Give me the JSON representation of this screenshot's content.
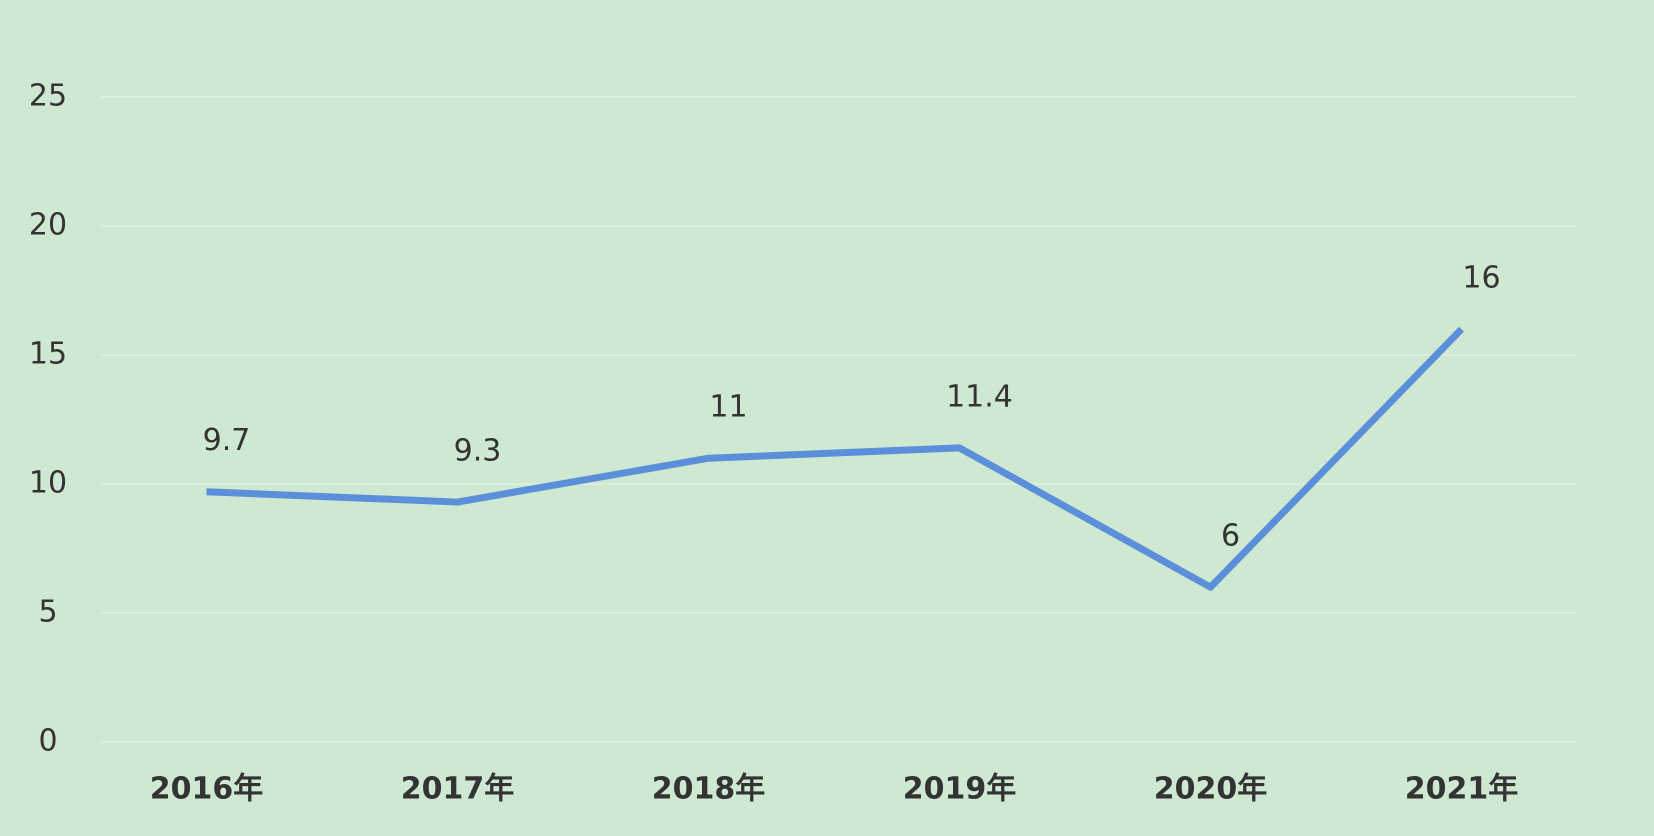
{
  "chart_data": {
    "type": "line",
    "categories": [
      "2016年",
      "2017年",
      "2018年",
      "2019年",
      "2020年",
      "2021年"
    ],
    "values": [
      9.7,
      9.3,
      11,
      11.4,
      6,
      16
    ],
    "color": "#5b8fd9",
    "ylim": [
      0,
      25
    ],
    "yticks": [
      0,
      5,
      10,
      15,
      20,
      25
    ],
    "grid": true
  }
}
